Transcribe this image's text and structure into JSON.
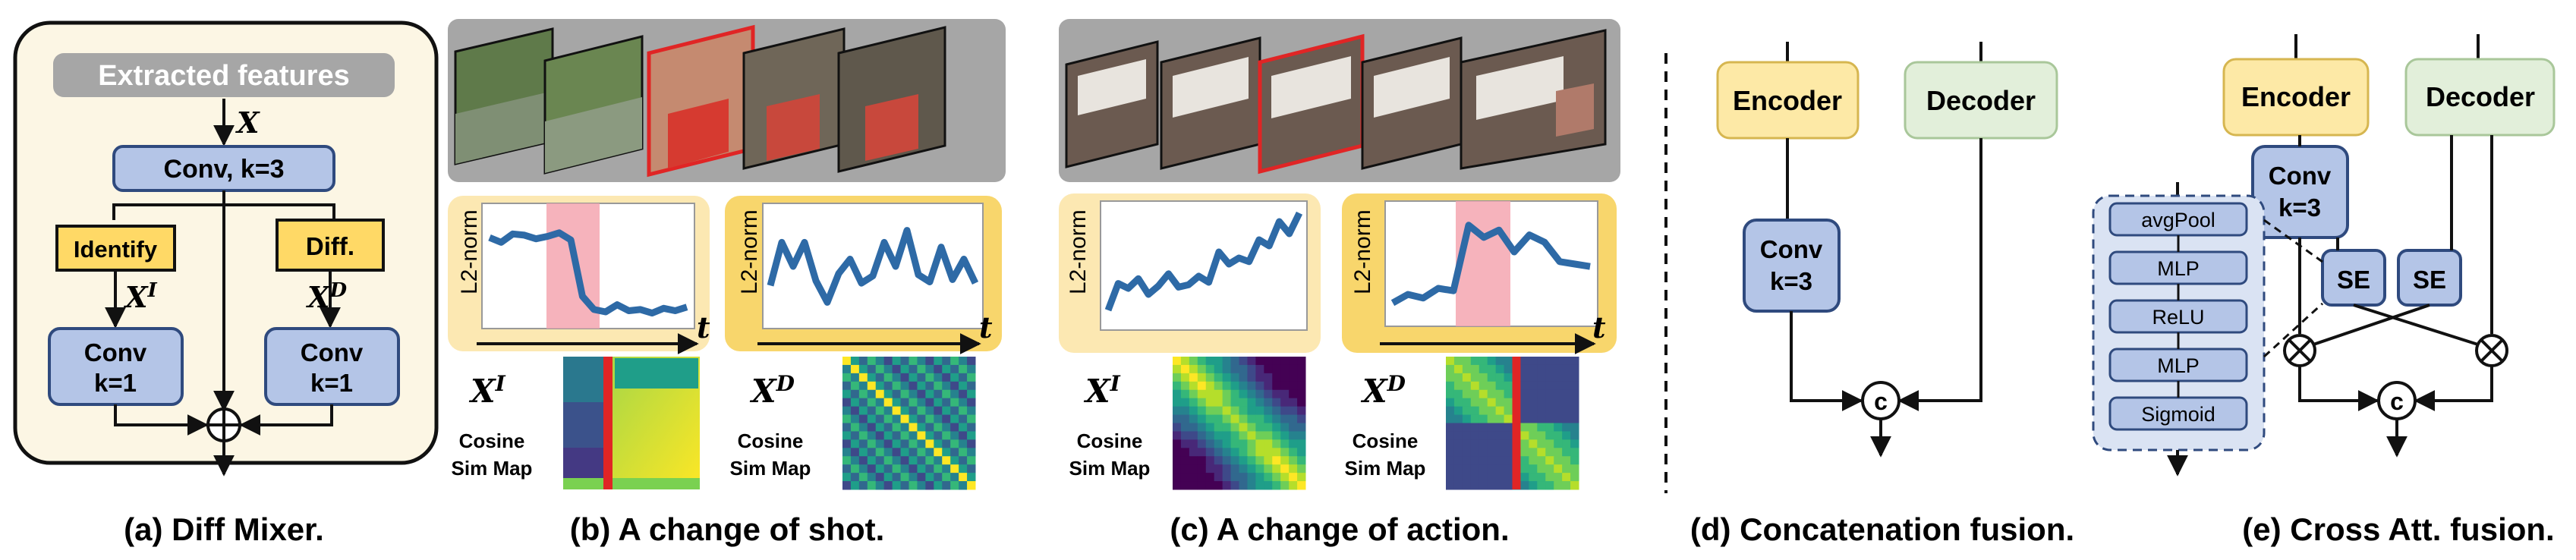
{
  "panel_a": {
    "header": "Extracted features",
    "x_label": "X",
    "conv3": [
      "Conv, k=3"
    ],
    "identify": "Identify",
    "diff": "Diff.",
    "xi_base": "X",
    "xi_sup": "I",
    "xd_base": "X",
    "xd_sup": "D",
    "conv1_left": [
      "Conv",
      "k=1"
    ],
    "conv1_right": [
      "Conv",
      "k=1"
    ],
    "caption": "(a) Diff Mixer."
  },
  "panel_b": {
    "ylabel_left": "L2-norm",
    "ylabel_right": "L2-norm",
    "t_left": "t",
    "t_right": "t",
    "left_series": [
      0.74,
      0.7,
      0.77,
      0.76,
      0.73,
      0.75,
      0.78,
      0.72,
      0.25,
      0.14,
      0.12,
      0.18,
      0.13,
      0.14,
      0.11,
      0.15,
      0.13,
      0.16
    ],
    "right_series": [
      0.34,
      0.7,
      0.5,
      0.7,
      0.38,
      0.2,
      0.44,
      0.56,
      0.36,
      0.42,
      0.7,
      0.5,
      0.8,
      0.43,
      0.37,
      0.66,
      0.39,
      0.56,
      0.36
    ],
    "xi_base": "X",
    "xi_sup": "I",
    "xd_base": "X",
    "xd_sup": "D",
    "sim_label": [
      "Cosine",
      "Sim Map"
    ],
    "sim_label_2": [
      "Cosine",
      "Sim Map"
    ],
    "caption": "(b) A change of shot."
  },
  "panel_c": {
    "ylabel_left": "L2-norm",
    "ylabel_right": "L2-norm",
    "t_right": "t",
    "left_series": [
      0.12,
      0.34,
      0.3,
      0.38,
      0.25,
      0.32,
      0.42,
      0.31,
      0.33,
      0.4,
      0.35,
      0.6,
      0.5,
      0.55,
      0.52,
      0.7,
      0.65,
      0.85,
      0.75,
      0.92
    ],
    "right_series": [
      0.18,
      0.25,
      0.22,
      0.3,
      0.28,
      0.82,
      0.72,
      0.78,
      0.6,
      0.74,
      0.68,
      0.52,
      0.5,
      0.48
    ],
    "xi_base": "X",
    "xi_sup": "I",
    "xd_base": "X",
    "xd_sup": "D",
    "sim_label": [
      "Cosine",
      "Sim Map"
    ],
    "sim_label_2": [
      "Cosine",
      "Sim Map"
    ],
    "caption": "(c) A change of action."
  },
  "panel_d": {
    "encoder": "Encoder",
    "decoder": "Decoder",
    "conv": [
      "Conv",
      "k=3"
    ],
    "concat": "c",
    "caption": "(d) Concatenation fusion."
  },
  "panel_e": {
    "encoder": "Encoder",
    "decoder": "Decoder",
    "conv": [
      "Conv",
      "k=3"
    ],
    "se_left": "SE",
    "se_right": "SE",
    "concat": "c",
    "se_stack": [
      "avgPool",
      "MLP",
      "ReLU",
      "MLP",
      "Sigmoid"
    ],
    "caption": "(e) Cross Att. fusion."
  },
  "colors": {
    "panel_a_bg": "#fcf6e4",
    "header_gray": "#a6a6a6",
    "blue_box": "#b4c5e7",
    "blue_border": "#2f4a7e",
    "yellow_box": "#ffd966",
    "encoder_fill": "#fde9a6",
    "decoder_fill": "#e2efda",
    "se_stack_bg": "#dae3f3",
    "light_yellow_chart": "#fce8b2",
    "gold_chart": "#f8d66c",
    "series_blue": "#2e6aa6",
    "highlight_pink": "#f4a6b0",
    "frame_red": "#e02525",
    "sim_yellow": "#fde725",
    "sim_purple": "#3b1f6e"
  }
}
